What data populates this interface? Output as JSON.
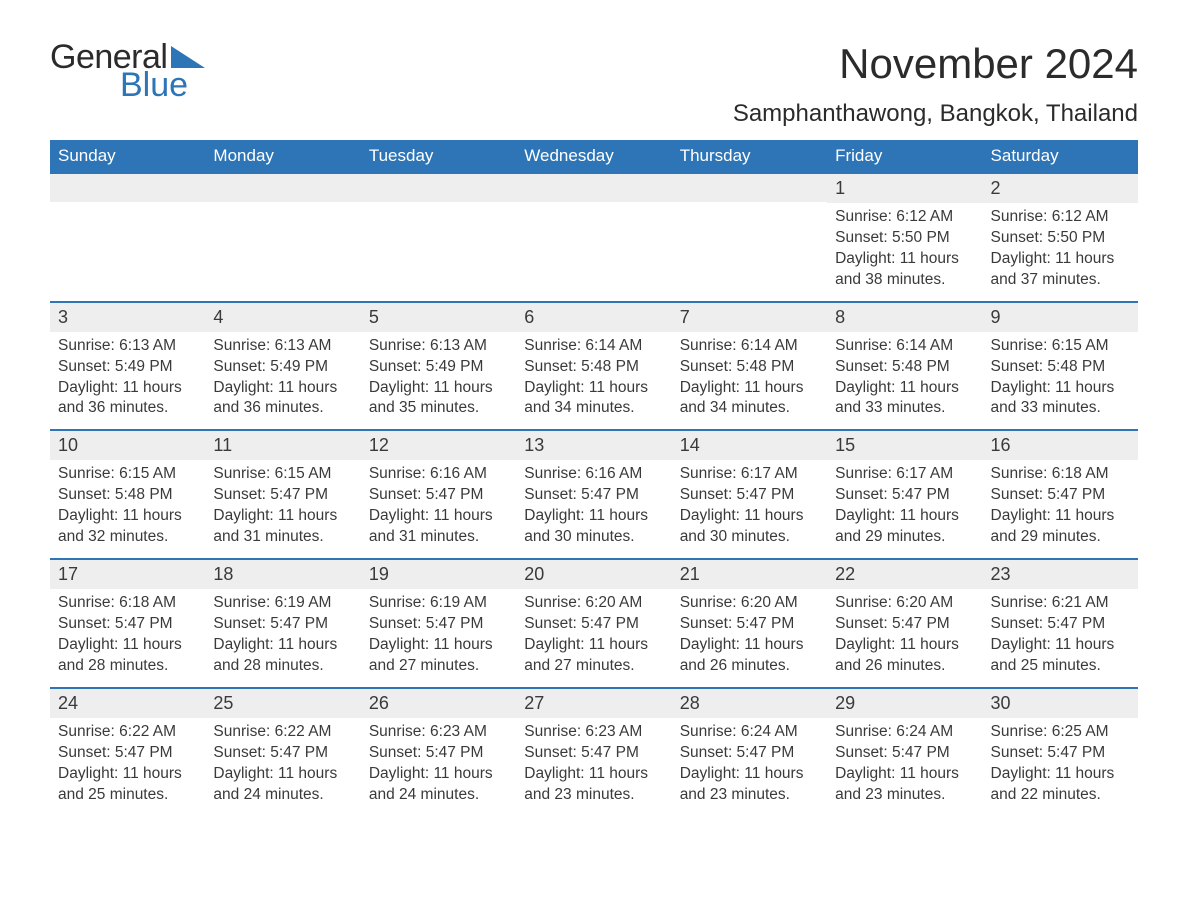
{
  "brand": {
    "word1": "General",
    "word2": "Blue",
    "accent_color": "#2d75b7"
  },
  "title": "November 2024",
  "location": "Samphanthawong, Bangkok, Thailand",
  "colors": {
    "header_bg": "#2d75b7",
    "header_text": "#ffffff",
    "row_border": "#2d75b7",
    "daynum_bg": "#eeeeee",
    "text": "#3a3a3a",
    "background": "#ffffff"
  },
  "typography": {
    "title_fontsize": 42,
    "location_fontsize": 24,
    "day_fontsize": 15.5
  },
  "day_labels": [
    "Sunday",
    "Monday",
    "Tuesday",
    "Wednesday",
    "Thursday",
    "Friday",
    "Saturday"
  ],
  "weeks": [
    [
      null,
      null,
      null,
      null,
      null,
      {
        "n": "1",
        "sunrise": "Sunrise: 6:12 AM",
        "sunset": "Sunset: 5:50 PM",
        "day1": "Daylight: 11 hours",
        "day2": "and 38 minutes."
      },
      {
        "n": "2",
        "sunrise": "Sunrise: 6:12 AM",
        "sunset": "Sunset: 5:50 PM",
        "day1": "Daylight: 11 hours",
        "day2": "and 37 minutes."
      }
    ],
    [
      {
        "n": "3",
        "sunrise": "Sunrise: 6:13 AM",
        "sunset": "Sunset: 5:49 PM",
        "day1": "Daylight: 11 hours",
        "day2": "and 36 minutes."
      },
      {
        "n": "4",
        "sunrise": "Sunrise: 6:13 AM",
        "sunset": "Sunset: 5:49 PM",
        "day1": "Daylight: 11 hours",
        "day2": "and 36 minutes."
      },
      {
        "n": "5",
        "sunrise": "Sunrise: 6:13 AM",
        "sunset": "Sunset: 5:49 PM",
        "day1": "Daylight: 11 hours",
        "day2": "and 35 minutes."
      },
      {
        "n": "6",
        "sunrise": "Sunrise: 6:14 AM",
        "sunset": "Sunset: 5:48 PM",
        "day1": "Daylight: 11 hours",
        "day2": "and 34 minutes."
      },
      {
        "n": "7",
        "sunrise": "Sunrise: 6:14 AM",
        "sunset": "Sunset: 5:48 PM",
        "day1": "Daylight: 11 hours",
        "day2": "and 34 minutes."
      },
      {
        "n": "8",
        "sunrise": "Sunrise: 6:14 AM",
        "sunset": "Sunset: 5:48 PM",
        "day1": "Daylight: 11 hours",
        "day2": "and 33 minutes."
      },
      {
        "n": "9",
        "sunrise": "Sunrise: 6:15 AM",
        "sunset": "Sunset: 5:48 PM",
        "day1": "Daylight: 11 hours",
        "day2": "and 33 minutes."
      }
    ],
    [
      {
        "n": "10",
        "sunrise": "Sunrise: 6:15 AM",
        "sunset": "Sunset: 5:48 PM",
        "day1": "Daylight: 11 hours",
        "day2": "and 32 minutes."
      },
      {
        "n": "11",
        "sunrise": "Sunrise: 6:15 AM",
        "sunset": "Sunset: 5:47 PM",
        "day1": "Daylight: 11 hours",
        "day2": "and 31 minutes."
      },
      {
        "n": "12",
        "sunrise": "Sunrise: 6:16 AM",
        "sunset": "Sunset: 5:47 PM",
        "day1": "Daylight: 11 hours",
        "day2": "and 31 minutes."
      },
      {
        "n": "13",
        "sunrise": "Sunrise: 6:16 AM",
        "sunset": "Sunset: 5:47 PM",
        "day1": "Daylight: 11 hours",
        "day2": "and 30 minutes."
      },
      {
        "n": "14",
        "sunrise": "Sunrise: 6:17 AM",
        "sunset": "Sunset: 5:47 PM",
        "day1": "Daylight: 11 hours",
        "day2": "and 30 minutes."
      },
      {
        "n": "15",
        "sunrise": "Sunrise: 6:17 AM",
        "sunset": "Sunset: 5:47 PM",
        "day1": "Daylight: 11 hours",
        "day2": "and 29 minutes."
      },
      {
        "n": "16",
        "sunrise": "Sunrise: 6:18 AM",
        "sunset": "Sunset: 5:47 PM",
        "day1": "Daylight: 11 hours",
        "day2": "and 29 minutes."
      }
    ],
    [
      {
        "n": "17",
        "sunrise": "Sunrise: 6:18 AM",
        "sunset": "Sunset: 5:47 PM",
        "day1": "Daylight: 11 hours",
        "day2": "and 28 minutes."
      },
      {
        "n": "18",
        "sunrise": "Sunrise: 6:19 AM",
        "sunset": "Sunset: 5:47 PM",
        "day1": "Daylight: 11 hours",
        "day2": "and 28 minutes."
      },
      {
        "n": "19",
        "sunrise": "Sunrise: 6:19 AM",
        "sunset": "Sunset: 5:47 PM",
        "day1": "Daylight: 11 hours",
        "day2": "and 27 minutes."
      },
      {
        "n": "20",
        "sunrise": "Sunrise: 6:20 AM",
        "sunset": "Sunset: 5:47 PM",
        "day1": "Daylight: 11 hours",
        "day2": "and 27 minutes."
      },
      {
        "n": "21",
        "sunrise": "Sunrise: 6:20 AM",
        "sunset": "Sunset: 5:47 PM",
        "day1": "Daylight: 11 hours",
        "day2": "and 26 minutes."
      },
      {
        "n": "22",
        "sunrise": "Sunrise: 6:20 AM",
        "sunset": "Sunset: 5:47 PM",
        "day1": "Daylight: 11 hours",
        "day2": "and 26 minutes."
      },
      {
        "n": "23",
        "sunrise": "Sunrise: 6:21 AM",
        "sunset": "Sunset: 5:47 PM",
        "day1": "Daylight: 11 hours",
        "day2": "and 25 minutes."
      }
    ],
    [
      {
        "n": "24",
        "sunrise": "Sunrise: 6:22 AM",
        "sunset": "Sunset: 5:47 PM",
        "day1": "Daylight: 11 hours",
        "day2": "and 25 minutes."
      },
      {
        "n": "25",
        "sunrise": "Sunrise: 6:22 AM",
        "sunset": "Sunset: 5:47 PM",
        "day1": "Daylight: 11 hours",
        "day2": "and 24 minutes."
      },
      {
        "n": "26",
        "sunrise": "Sunrise: 6:23 AM",
        "sunset": "Sunset: 5:47 PM",
        "day1": "Daylight: 11 hours",
        "day2": "and 24 minutes."
      },
      {
        "n": "27",
        "sunrise": "Sunrise: 6:23 AM",
        "sunset": "Sunset: 5:47 PM",
        "day1": "Daylight: 11 hours",
        "day2": "and 23 minutes."
      },
      {
        "n": "28",
        "sunrise": "Sunrise: 6:24 AM",
        "sunset": "Sunset: 5:47 PM",
        "day1": "Daylight: 11 hours",
        "day2": "and 23 minutes."
      },
      {
        "n": "29",
        "sunrise": "Sunrise: 6:24 AM",
        "sunset": "Sunset: 5:47 PM",
        "day1": "Daylight: 11 hours",
        "day2": "and 23 minutes."
      },
      {
        "n": "30",
        "sunrise": "Sunrise: 6:25 AM",
        "sunset": "Sunset: 5:47 PM",
        "day1": "Daylight: 11 hours",
        "day2": "and 22 minutes."
      }
    ]
  ]
}
